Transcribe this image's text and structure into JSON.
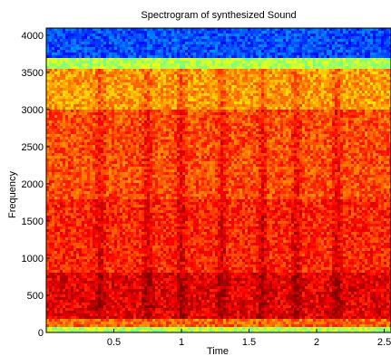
{
  "chart_data": {
    "type": "heatmap",
    "title": "Spectrogram of synthesized Sound",
    "xlabel": "Time",
    "ylabel": "Frequency",
    "xlim": [
      0,
      2.55
    ],
    "ylim": [
      0,
      4096
    ],
    "xticks": [
      0.5,
      1,
      1.5,
      2,
      2.5
    ],
    "xtick_labels": [
      "0.5",
      "1",
      "1.5",
      "2",
      "2.5"
    ],
    "yticks": [
      0,
      500,
      1000,
      1500,
      2000,
      2500,
      3000,
      3500,
      4000
    ],
    "ytick_labels": [
      "0",
      "500",
      "1000",
      "1500",
      "2000",
      "2500",
      "3000",
      "3500",
      "4000"
    ],
    "grid": false,
    "colormap": "jet",
    "frequency_bands": [
      {
        "from": 0,
        "to": 80,
        "level": 0.55
      },
      {
        "from": 80,
        "to": 180,
        "level": 0.78
      },
      {
        "from": 180,
        "to": 800,
        "level": 0.9
      },
      {
        "from": 800,
        "to": 1800,
        "level": 0.84
      },
      {
        "from": 1800,
        "to": 3000,
        "level": 0.8
      },
      {
        "from": 3000,
        "to": 3550,
        "level": 0.72
      },
      {
        "from": 3550,
        "to": 3700,
        "level": 0.55
      },
      {
        "from": 3700,
        "to": 4096,
        "level": 0.2
      }
    ],
    "dark_time_bands": [
      0.4,
      0.75,
      1.0,
      1.3,
      1.6,
      1.85,
      2.15
    ]
  }
}
